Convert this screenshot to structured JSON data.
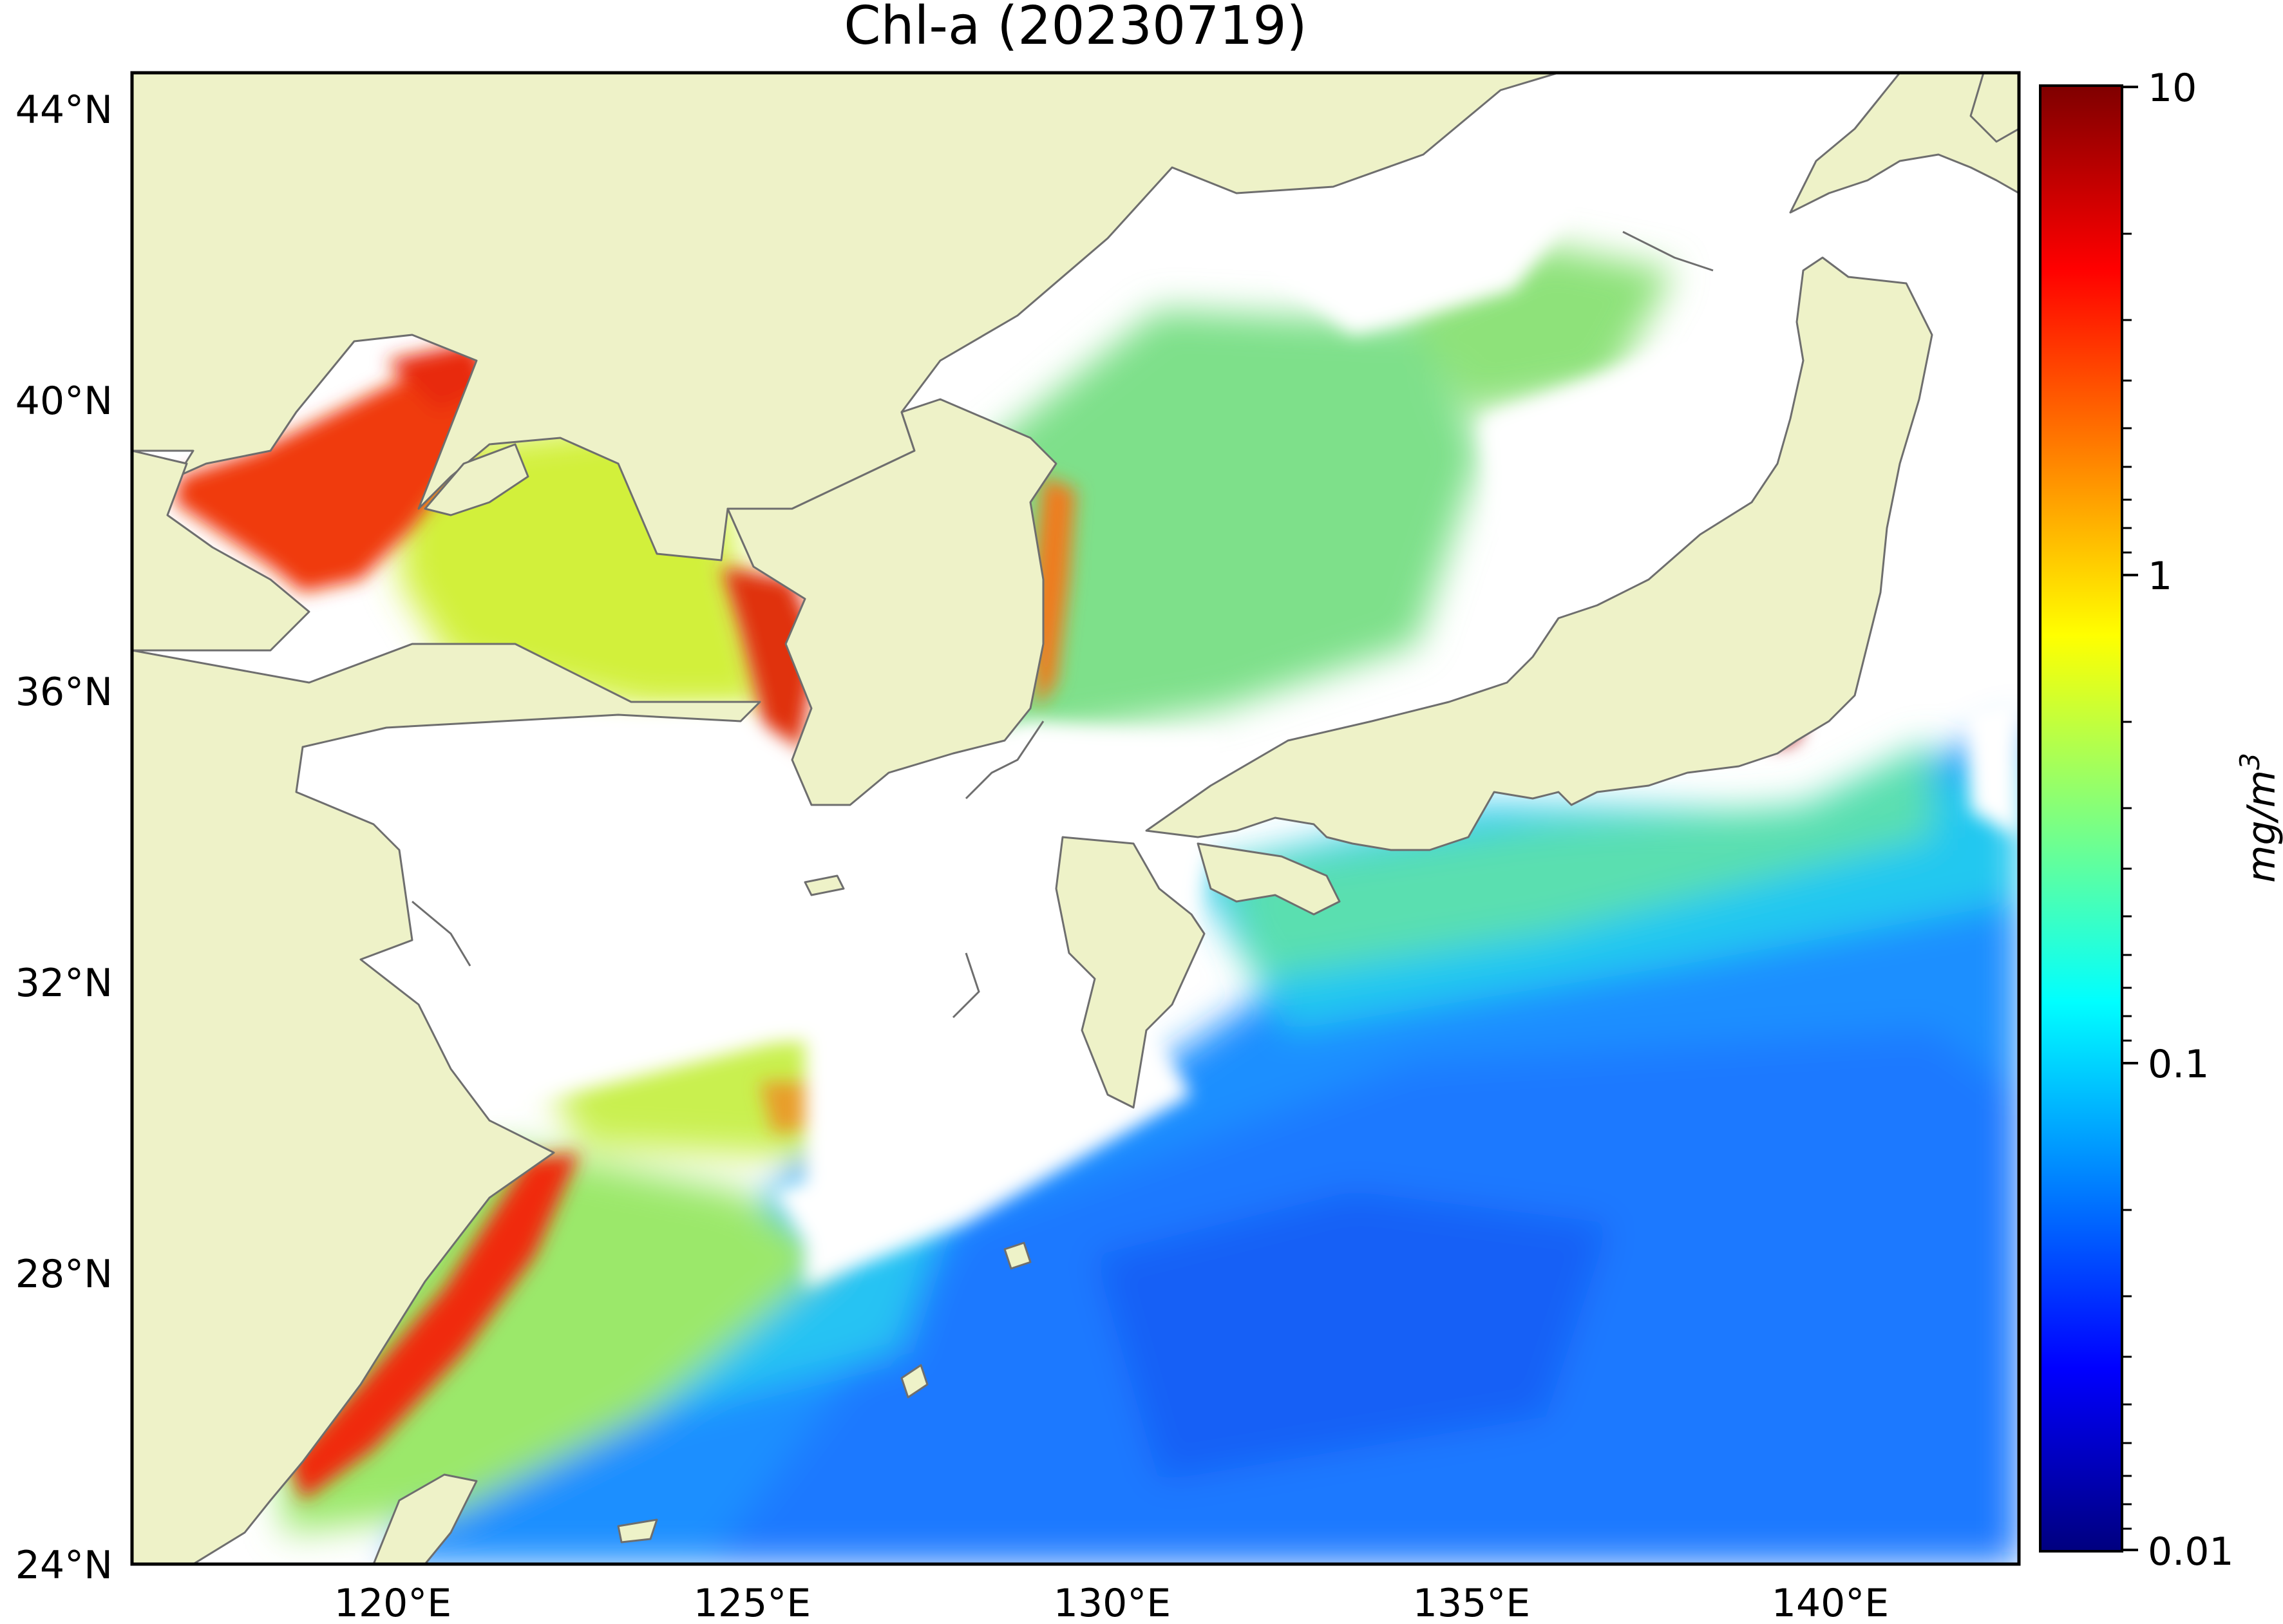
{
  "title": "Chl-a (20230719)",
  "map": {
    "lon_range": [
      116.5,
      143.0
    ],
    "lat_range": [
      24.0,
      44.5
    ],
    "lat_ticks": [
      {
        "value": 44,
        "label": "44°N"
      },
      {
        "value": 40,
        "label": "40°N"
      },
      {
        "value": 36,
        "label": "36°N"
      },
      {
        "value": 32,
        "label": "32°N"
      },
      {
        "value": 28,
        "label": "28°N"
      },
      {
        "value": 24,
        "label": "24°N"
      }
    ],
    "lon_ticks": [
      {
        "value": 120,
        "label": "120°E"
      },
      {
        "value": 125,
        "label": "125°E"
      },
      {
        "value": 130,
        "label": "130°E"
      },
      {
        "value": 135,
        "label": "135°E"
      },
      {
        "value": 140,
        "label": "140°E"
      }
    ],
    "colors": {
      "land": "#eef2c8",
      "no_data": "#ffffff",
      "coastline": "#6e6e6e",
      "frame": "#000000"
    }
  },
  "colorbar": {
    "scale": "log",
    "range": [
      0.01,
      10
    ],
    "tick_labels": [
      {
        "value": 10,
        "label": "10"
      },
      {
        "value": 1,
        "label": "1"
      },
      {
        "value": 0.1,
        "label": "0.1"
      },
      {
        "value": 0.01,
        "label": "0.01"
      }
    ],
    "unit_label": "mg/m",
    "unit_superscript": "3",
    "colormap": "jet",
    "colormap_stops": [
      "#00007f",
      "#0000ff",
      "#007fff",
      "#00ffff",
      "#7fff7f",
      "#ffff00",
      "#ff7f00",
      "#ff0000",
      "#7f0000"
    ]
  }
}
